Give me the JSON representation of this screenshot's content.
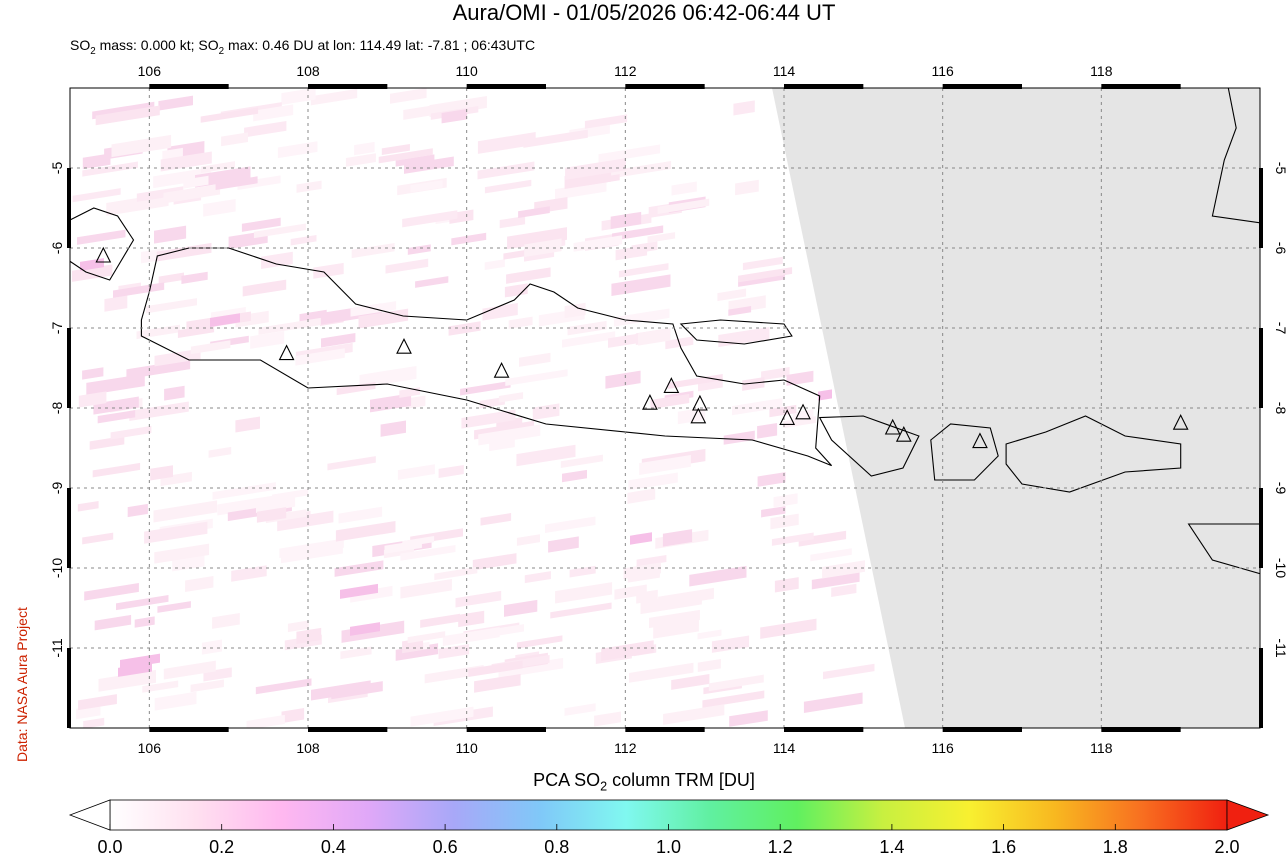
{
  "title": "Aura/OMI - 01/05/2026 06:42-06:44 UT",
  "subtitle_parts": {
    "mass_prefix": "SO",
    "mass_sub": "2",
    "mass_text": " mass: 0.000 kt; SO",
    "max_sub": "2",
    "max_text": " max: 0.46 DU at lon: 114.49 lat: -7.81 ; 06:43UTC"
  },
  "credit": "Data: NASA Aura Project",
  "map": {
    "lon_range": [
      105,
      120
    ],
    "lat_range": [
      -12,
      -4
    ],
    "lon_ticks": [
      "106",
      "108",
      "110",
      "112",
      "114",
      "116",
      "118"
    ],
    "lon_tick_values": [
      106,
      108,
      110,
      112,
      114,
      116,
      118
    ],
    "lat_ticks": [
      "-5",
      "-6",
      "-7",
      "-8",
      "-9",
      "-10",
      "-11"
    ],
    "lat_tick_values": [
      -5,
      -6,
      -7,
      -8,
      -9,
      -10,
      -11
    ],
    "no_data_color": "#e5e5e5",
    "volcanoes": [
      {
        "lon": 105.42,
        "lat": -6.1
      },
      {
        "lon": 107.73,
        "lat": -7.32
      },
      {
        "lon": 109.21,
        "lat": -7.24
      },
      {
        "lon": 110.44,
        "lat": -7.54
      },
      {
        "lon": 112.31,
        "lat": -7.94
      },
      {
        "lon": 112.58,
        "lat": -7.73
      },
      {
        "lon": 112.94,
        "lat": -7.95
      },
      {
        "lon": 112.92,
        "lat": -8.11
      },
      {
        "lon": 114.04,
        "lat": -8.13
      },
      {
        "lon": 114.24,
        "lat": -8.06
      },
      {
        "lon": 115.37,
        "lat": -8.25
      },
      {
        "lon": 115.51,
        "lat": -8.34
      },
      {
        "lon": 116.47,
        "lat": -8.42
      },
      {
        "lon": 119.0,
        "lat": -8.19
      }
    ]
  },
  "colorbar": {
    "title_prefix": "PCA SO",
    "title_sub": "2",
    "title_suffix": " column TRM [DU]",
    "ticks": [
      "0.0",
      "0.2",
      "0.4",
      "0.6",
      "0.8",
      "1.0",
      "1.2",
      "1.4",
      "1.6",
      "1.8",
      "2.0"
    ],
    "tick_values": [
      0.0,
      0.2,
      0.4,
      0.6,
      0.8,
      1.0,
      1.2,
      1.4,
      1.6,
      1.8,
      2.0
    ],
    "range": [
      0.0,
      2.0
    ],
    "colors": [
      "#ffffff",
      "#ffe0f0",
      "#ffb8f0",
      "#e0a8f8",
      "#a8a8f8",
      "#80c8f8",
      "#80f8f0",
      "#60f0a0",
      "#60f060",
      "#c8f040",
      "#f8f030",
      "#f8b820",
      "#f87020",
      "#f02010"
    ]
  }
}
